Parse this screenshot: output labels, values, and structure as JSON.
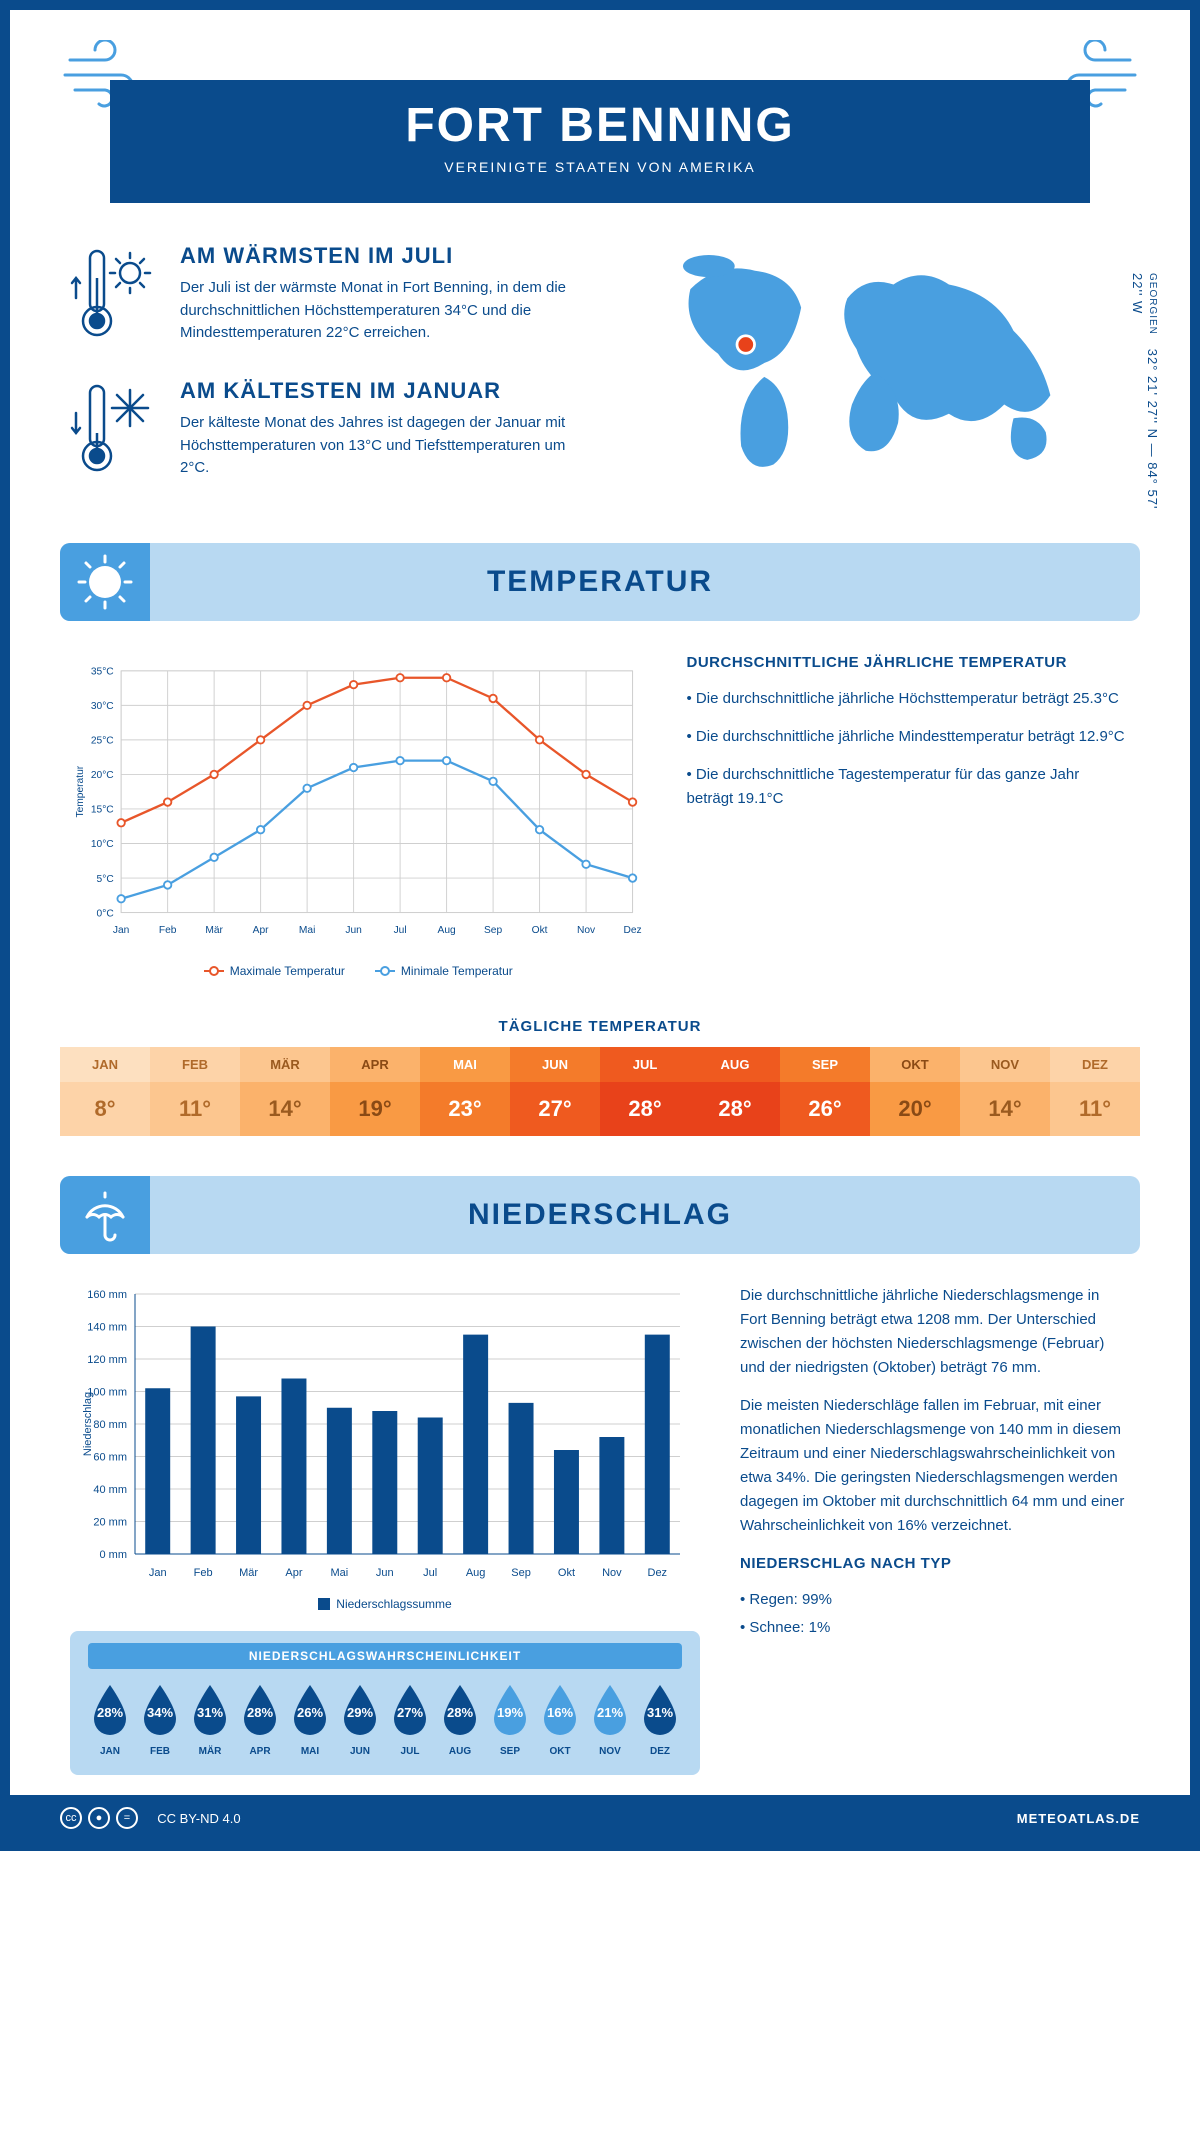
{
  "header": {
    "title": "FORT BENNING",
    "subtitle": "VEREINIGTE STAATEN VON AMERIKA"
  },
  "coords": {
    "state": "GEORGIEN",
    "text": "32° 21' 27'' N — 84° 57' 22'' W"
  },
  "facts": {
    "warm": {
      "title": "AM WÄRMSTEN IM JULI",
      "text": "Der Juli ist der wärmste Monat in Fort Benning, in dem die durchschnittlichen Höchsttemperaturen 34°C und die Mindesttemperaturen 22°C erreichen."
    },
    "cold": {
      "title": "AM KÄLTESTEN IM JANUAR",
      "text": "Der kälteste Monat des Jahres ist dagegen der Januar mit Höchsttemperaturen von 13°C und Tiefsttemperaturen um 2°C."
    }
  },
  "sections": {
    "temp": "TEMPERATUR",
    "precip": "NIEDERSCHLAG"
  },
  "temp_chart": {
    "type": "line",
    "months": [
      "Jan",
      "Feb",
      "Mär",
      "Apr",
      "Mai",
      "Jun",
      "Jul",
      "Aug",
      "Sep",
      "Okt",
      "Nov",
      "Dez"
    ],
    "max_values": [
      13,
      16,
      20,
      25,
      30,
      33,
      34,
      34,
      31,
      25,
      20,
      16
    ],
    "min_values": [
      2,
      4,
      8,
      12,
      18,
      21,
      22,
      22,
      19,
      12,
      7,
      5
    ],
    "max_color": "#e8562a",
    "min_color": "#499fe0",
    "ylim": [
      0,
      35
    ],
    "ytick_step": 5,
    "grid_color": "#cfcfcf",
    "axis_color": "#0a4b8c",
    "y_label": "Temperatur",
    "legend_max": "Maximale Temperatur",
    "legend_min": "Minimale Temperatur"
  },
  "temp_text": {
    "title": "DURCHSCHNITTLICHE JÄHRLICHE TEMPERATUR",
    "b1": "• Die durchschnittliche jährliche Höchsttemperatur beträgt 25.3°C",
    "b2": "• Die durchschnittliche jährliche Mindesttemperatur beträgt 12.9°C",
    "b3": "• Die durchschnittliche Tagestemperatur für das ganze Jahr beträgt 19.1°C"
  },
  "daily_temp": {
    "title": "TÄGLICHE TEMPERATUR",
    "months": [
      "JAN",
      "FEB",
      "MÄR",
      "APR",
      "MAI",
      "JUN",
      "JUL",
      "AUG",
      "SEP",
      "OKT",
      "NOV",
      "DEZ"
    ],
    "values": [
      "8°",
      "11°",
      "14°",
      "19°",
      "23°",
      "27°",
      "28°",
      "28°",
      "26°",
      "20°",
      "14°",
      "11°"
    ],
    "month_bg": [
      "#fde0c0",
      "#fdd3a8",
      "#fcc68f",
      "#fbb26b",
      "#f99a44",
      "#f47b2a",
      "#ef5a1f",
      "#ef5a1f",
      "#f47b2a",
      "#fbb26b",
      "#fcc68f",
      "#fdd3a8"
    ],
    "value_bg": [
      "#fdd3a8",
      "#fcc68f",
      "#fbb26b",
      "#f99a44",
      "#f47b2a",
      "#ef5a1f",
      "#e8421a",
      "#e8421a",
      "#ef5a1f",
      "#f99a44",
      "#fbb26b",
      "#fcc68f"
    ],
    "text_colors": [
      "#b06a2a",
      "#b06a2a",
      "#9a5a1f",
      "#8a4a15",
      "#ffffff",
      "#ffffff",
      "#ffffff",
      "#ffffff",
      "#ffffff",
      "#8a4a15",
      "#9a5a1f",
      "#b06a2a"
    ]
  },
  "precip_chart": {
    "type": "bar",
    "months": [
      "Jan",
      "Feb",
      "Mär",
      "Apr",
      "Mai",
      "Jun",
      "Jul",
      "Aug",
      "Sep",
      "Okt",
      "Nov",
      "Dez"
    ],
    "values": [
      102,
      140,
      97,
      108,
      90,
      88,
      84,
      135,
      93,
      64,
      72,
      135
    ],
    "bar_color": "#0a4b8c",
    "ylim": [
      0,
      160
    ],
    "ytick_step": 20,
    "grid_color": "#cfcfcf",
    "axis_color": "#0a4b8c",
    "y_label": "Niederschlag",
    "legend": "Niederschlagssumme"
  },
  "precip_text": {
    "p1": "Die durchschnittliche jährliche Niederschlagsmenge in Fort Benning beträgt etwa 1208 mm. Der Unterschied zwischen der höchsten Niederschlagsmenge (Februar) und der niedrigsten (Oktober) beträgt 76 mm.",
    "p2": "Die meisten Niederschläge fallen im Februar, mit einer monatlichen Niederschlagsmenge von 140 mm in diesem Zeitraum und einer Niederschlagswahrscheinlichkeit von etwa 34%. Die geringsten Niederschlagsmengen werden dagegen im Oktober mit durchschnittlich 64 mm und einer Wahrscheinlichkeit von 16% verzeichnet.",
    "type_title": "NIEDERSCHLAG NACH TYP",
    "rain": "• Regen: 99%",
    "snow": "• Schnee: 1%"
  },
  "prob": {
    "title": "NIEDERSCHLAGSWAHRSCHEINLICHKEIT",
    "months": [
      "JAN",
      "FEB",
      "MÄR",
      "APR",
      "MAI",
      "JUN",
      "JUL",
      "AUG",
      "SEP",
      "OKT",
      "NOV",
      "DEZ"
    ],
    "values": [
      "28%",
      "34%",
      "31%",
      "28%",
      "26%",
      "29%",
      "27%",
      "28%",
      "19%",
      "16%",
      "21%",
      "31%"
    ],
    "colors": [
      "#0a4b8c",
      "#0a4b8c",
      "#0a4b8c",
      "#0a4b8c",
      "#0a4b8c",
      "#0a4b8c",
      "#0a4b8c",
      "#0a4b8c",
      "#499fe0",
      "#499fe0",
      "#499fe0",
      "#0a4b8c"
    ]
  },
  "footer": {
    "license": "CC BY-ND 4.0",
    "site": "METEOATLAS.DE"
  }
}
